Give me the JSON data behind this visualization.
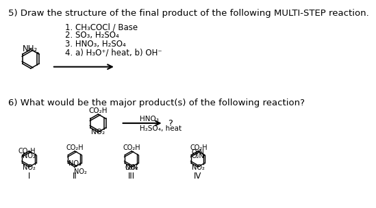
{
  "bg_color": "#ffffff",
  "title5": "5) Draw the structure of the final product of the following MULTI-STEP reaction.",
  "title6": "6) What would be the major product(s) of the following reaction?",
  "steps_lines": [
    "1. CH₃COCl / Base",
    "2. SO₃, H₂SO₄",
    "3. HNO₃, H₂SO₄",
    "4. a) H₃O⁺/ heat, b) OH⁻"
  ],
  "reagent6_top": "HNO₃",
  "reagent6_bot": "H₂SO₄, heat",
  "question_mark": "?",
  "roman_numerals": [
    "I",
    "II",
    "III",
    "IV"
  ],
  "font_size_title": 9.5,
  "font_size_body": 8.5,
  "font_size_small": 7.5,
  "font_size_label": 7.0
}
